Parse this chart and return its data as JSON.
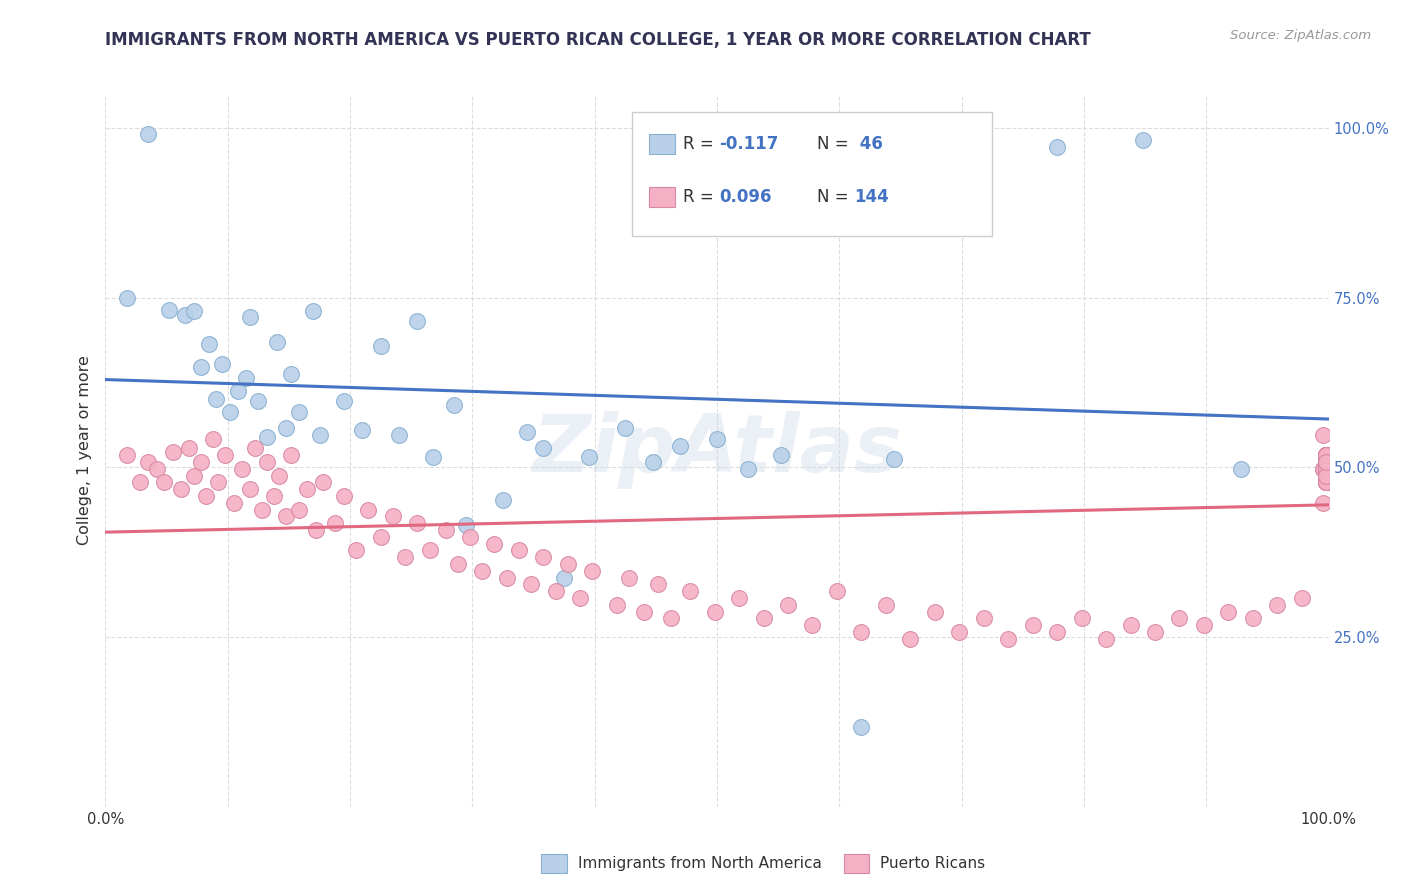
{
  "title": "IMMIGRANTS FROM NORTH AMERICA VS PUERTO RICAN COLLEGE, 1 YEAR OR MORE CORRELATION CHART",
  "source": "Source: ZipAtlas.com",
  "ylabel": "College, 1 year or more",
  "legend_r1_val": "-0.117",
  "legend_n1_val": "46",
  "legend_r2_val": "0.096",
  "legend_n2_val": "144",
  "blue_fill": "#b8d0e8",
  "blue_edge": "#88b0d0",
  "pink_fill": "#f4b0c4",
  "pink_edge": "#d888a0",
  "trend_blue": "#4472c4",
  "trend_pink": "#e06880",
  "trend_dashed": "#bbbbbb",
  "background": "#ffffff",
  "grid_color": "#dddddd",
  "watermark": "ZipAtlas",
  "title_color": "#333355",
  "source_color": "#999999",
  "axis_label_color": "#4472c4",
  "text_color": "#333333",
  "bottom_blue_label": "Immigrants from North America",
  "bottom_pink_label": "Puerto Ricans",
  "blue_x": [
    0.018,
    0.035,
    0.052,
    0.065,
    0.072,
    0.078,
    0.085,
    0.09,
    0.095,
    0.102,
    0.108,
    0.115,
    0.118,
    0.125,
    0.132,
    0.14,
    0.148,
    0.152,
    0.158,
    0.17,
    0.175,
    0.195,
    0.21,
    0.225,
    0.24,
    0.255,
    0.268,
    0.285,
    0.295,
    0.325,
    0.345,
    0.358,
    0.375,
    0.395,
    0.425,
    0.448,
    0.47,
    0.5,
    0.525,
    0.552,
    0.618,
    0.645,
    0.698,
    0.778,
    0.848,
    0.928
  ],
  "blue_y": [
    0.75,
    0.99,
    0.732,
    0.725,
    0.73,
    0.648,
    0.682,
    0.6,
    0.652,
    0.582,
    0.612,
    0.632,
    0.722,
    0.598,
    0.545,
    0.685,
    0.558,
    0.638,
    0.582,
    0.73,
    0.548,
    0.598,
    0.555,
    0.678,
    0.548,
    0.715,
    0.515,
    0.592,
    0.415,
    0.452,
    0.552,
    0.528,
    0.338,
    0.515,
    0.558,
    0.508,
    0.532,
    0.542,
    0.498,
    0.518,
    0.118,
    0.512,
    0.988,
    0.972,
    0.982,
    0.498
  ],
  "pink_x": [
    0.018,
    0.028,
    0.035,
    0.042,
    0.048,
    0.055,
    0.062,
    0.068,
    0.072,
    0.078,
    0.082,
    0.088,
    0.092,
    0.098,
    0.105,
    0.112,
    0.118,
    0.122,
    0.128,
    0.132,
    0.138,
    0.142,
    0.148,
    0.152,
    0.158,
    0.165,
    0.172,
    0.178,
    0.188,
    0.195,
    0.205,
    0.215,
    0.225,
    0.235,
    0.245,
    0.255,
    0.265,
    0.278,
    0.288,
    0.298,
    0.308,
    0.318,
    0.328,
    0.338,
    0.348,
    0.358,
    0.368,
    0.378,
    0.388,
    0.398,
    0.418,
    0.428,
    0.44,
    0.452,
    0.462,
    0.478,
    0.498,
    0.518,
    0.538,
    0.558,
    0.578,
    0.598,
    0.618,
    0.638,
    0.658,
    0.678,
    0.698,
    0.718,
    0.738,
    0.758,
    0.778,
    0.798,
    0.818,
    0.838,
    0.858,
    0.878,
    0.898,
    0.918,
    0.938,
    0.958,
    0.978,
    0.995,
    0.995,
    0.995,
    0.995,
    0.998,
    0.998,
    0.998,
    0.998,
    0.998,
    0.998,
    0.998,
    0.998,
    0.998,
    0.998,
    0.998,
    0.998,
    0.998,
    0.998,
    0.998,
    0.998,
    0.998,
    0.998,
    0.998,
    0.998,
    0.998,
    0.998,
    0.998,
    0.998,
    0.998,
    0.998,
    0.998,
    0.998,
    0.998,
    0.998,
    0.998,
    0.998,
    0.998,
    0.998,
    0.998,
    0.998,
    0.998,
    0.998,
    0.998,
    0.998,
    0.998,
    0.998,
    0.998,
    0.998,
    0.998,
    0.998,
    0.998,
    0.998,
    0.998,
    0.998,
    0.998,
    0.998,
    0.998,
    0.998,
    0.998,
    0.998,
    0.998,
    0.998,
    0.998
  ],
  "pink_y": [
    0.518,
    0.478,
    0.508,
    0.498,
    0.478,
    0.522,
    0.468,
    0.528,
    0.488,
    0.508,
    0.458,
    0.542,
    0.478,
    0.518,
    0.448,
    0.498,
    0.468,
    0.528,
    0.438,
    0.508,
    0.458,
    0.488,
    0.428,
    0.518,
    0.438,
    0.468,
    0.408,
    0.478,
    0.418,
    0.458,
    0.378,
    0.438,
    0.398,
    0.428,
    0.368,
    0.418,
    0.378,
    0.408,
    0.358,
    0.398,
    0.348,
    0.388,
    0.338,
    0.378,
    0.328,
    0.368,
    0.318,
    0.358,
    0.308,
    0.348,
    0.298,
    0.338,
    0.288,
    0.328,
    0.278,
    0.318,
    0.288,
    0.308,
    0.278,
    0.298,
    0.268,
    0.318,
    0.258,
    0.298,
    0.248,
    0.288,
    0.258,
    0.278,
    0.248,
    0.268,
    0.258,
    0.278,
    0.248,
    0.268,
    0.258,
    0.278,
    0.268,
    0.288,
    0.278,
    0.298,
    0.308,
    0.548,
    0.498,
    0.448,
    0.498,
    0.478,
    0.518,
    0.488,
    0.508,
    0.498,
    0.478,
    0.518,
    0.488,
    0.508,
    0.498,
    0.478,
    0.518,
    0.488,
    0.508,
    0.498,
    0.478,
    0.518,
    0.488,
    0.508,
    0.498,
    0.478,
    0.518,
    0.488,
    0.508,
    0.498,
    0.478,
    0.518,
    0.488,
    0.508,
    0.498,
    0.478,
    0.518,
    0.488,
    0.508,
    0.498,
    0.478,
    0.518,
    0.488,
    0.508,
    0.498,
    0.478,
    0.518,
    0.488,
    0.508,
    0.498,
    0.478,
    0.518,
    0.488,
    0.508,
    0.498,
    0.478,
    0.518,
    0.488,
    0.508,
    0.498,
    0.478,
    0.518,
    0.488,
    0.508
  ]
}
